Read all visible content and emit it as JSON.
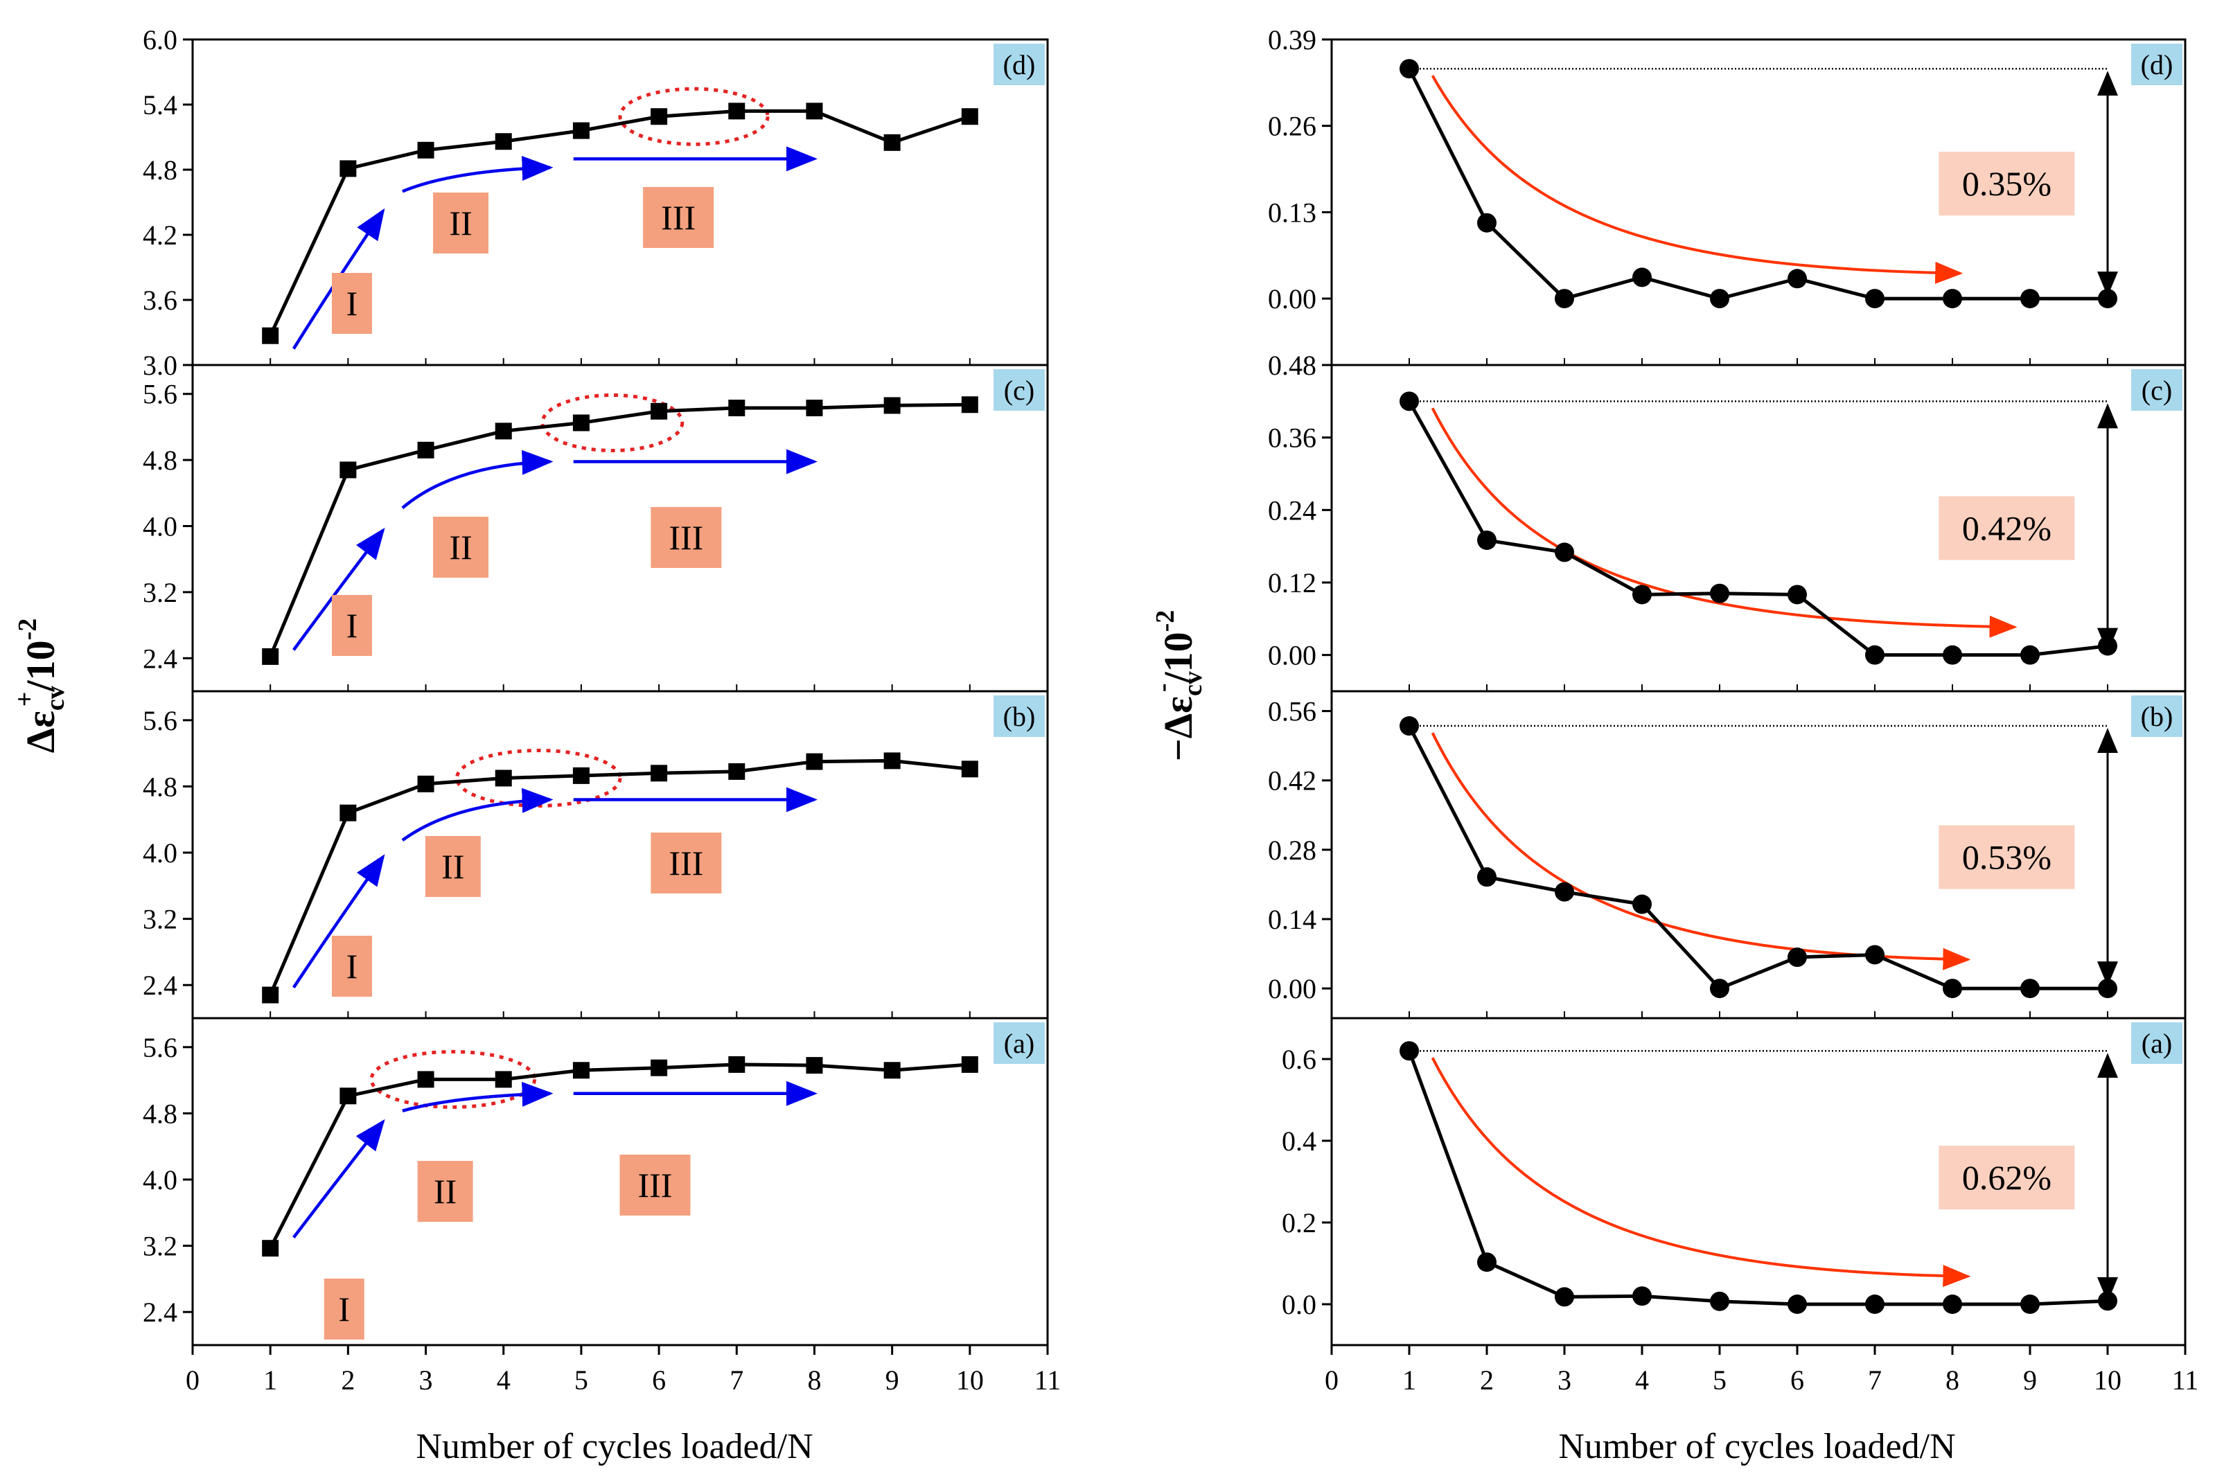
{
  "colors": {
    "line": "#000000",
    "blue_arrow": "#0000ee",
    "red_arrow": "#ff3300",
    "stage_box": "#f4a07e",
    "pct_box": "#fbd0bf",
    "tag_box": "#a8d8ec",
    "ellipse": "#e52222"
  },
  "chart_data": [
    {
      "side": "left",
      "panel": "d",
      "type": "line",
      "marker": "square",
      "x": [
        1,
        2,
        3,
        4,
        5,
        6,
        7,
        8,
        9,
        10
      ],
      "y": [
        3.27,
        4.81,
        4.98,
        5.06,
        5.16,
        5.29,
        5.34,
        5.34,
        5.05,
        5.29
      ],
      "xlim": [
        0,
        11
      ],
      "ylim": [
        3.0,
        6.0
      ],
      "yticks": [
        "3.0",
        "3.6",
        "4.2",
        "4.8",
        "5.4",
        "6.0"
      ],
      "label": "(d)",
      "stages": [
        "I",
        "II",
        "III"
      ],
      "highlight_x": [
        5.5,
        7.4
      ]
    },
    {
      "side": "left",
      "panel": "c",
      "type": "line",
      "marker": "square",
      "x": [
        1,
        2,
        3,
        4,
        5,
        6,
        7,
        8,
        9,
        10
      ],
      "y": [
        2.42,
        4.68,
        4.92,
        5.15,
        5.25,
        5.39,
        5.43,
        5.43,
        5.46,
        5.47
      ],
      "xlim": [
        0,
        11
      ],
      "ylim": [
        2.0,
        5.95
      ],
      "yticks": [
        "2.4",
        "3.2",
        "4.0",
        "4.8",
        "5.6"
      ],
      "label": "(c)",
      "stages": [
        "I",
        "II",
        "III"
      ],
      "highlight_x": [
        4.5,
        6.3
      ]
    },
    {
      "side": "left",
      "panel": "b",
      "type": "line",
      "marker": "square",
      "x": [
        1,
        2,
        3,
        4,
        5,
        6,
        7,
        8,
        9,
        10
      ],
      "y": [
        2.28,
        4.48,
        4.83,
        4.9,
        4.93,
        4.96,
        4.98,
        5.1,
        5.11,
        5.01
      ],
      "xlim": [
        0,
        11
      ],
      "ylim": [
        2.0,
        5.95
      ],
      "yticks": [
        "2.4",
        "3.2",
        "4.0",
        "4.8",
        "5.6"
      ],
      "label": "(b)",
      "stages": [
        "I",
        "II",
        "III"
      ],
      "highlight_x": [
        3.4,
        5.5
      ]
    },
    {
      "side": "left",
      "panel": "a",
      "type": "line",
      "marker": "square",
      "x": [
        1,
        2,
        3,
        4,
        5,
        6,
        7,
        8,
        9,
        10
      ],
      "y": [
        3.17,
        5.01,
        5.21,
        5.21,
        5.32,
        5.35,
        5.39,
        5.38,
        5.32,
        5.39
      ],
      "xlim": [
        0,
        11
      ],
      "ylim": [
        2.0,
        5.95
      ],
      "yticks": [
        "2.4",
        "3.2",
        "4.0",
        "4.8",
        "5.6"
      ],
      "label": "(a)",
      "stages": [
        "I",
        "II",
        "III"
      ],
      "highlight_x": [
        2.3,
        4.4
      ]
    },
    {
      "side": "right",
      "panel": "d",
      "type": "line",
      "marker": "circle",
      "x": [
        1,
        2,
        3,
        4,
        5,
        6,
        7,
        8,
        9,
        10
      ],
      "y": [
        0.346,
        0.114,
        0.0,
        0.032,
        0.0,
        0.03,
        0.0,
        0.0,
        0.0,
        0.0
      ],
      "xlim": [
        0,
        11
      ],
      "ylim": [
        -0.1,
        0.39
      ],
      "yticks": [
        "0.00",
        "0.13",
        "0.26",
        "0.39"
      ],
      "label": "(d)",
      "annotation": "0.35%",
      "trend_end_x": 8.1
    },
    {
      "side": "right",
      "panel": "c",
      "type": "line",
      "marker": "circle",
      "x": [
        1,
        2,
        3,
        4,
        5,
        6,
        7,
        8,
        9,
        10
      ],
      "y": [
        0.42,
        0.19,
        0.17,
        0.1,
        0.102,
        0.1,
        0.0,
        0.0,
        0.0,
        0.015
      ],
      "xlim": [
        0,
        11
      ],
      "ylim": [
        -0.06,
        0.48
      ],
      "yticks": [
        "0.00",
        "0.12",
        "0.24",
        "0.36",
        "0.48"
      ],
      "label": "(c)",
      "annotation": "0.42%",
      "trend_end_x": 8.8
    },
    {
      "side": "right",
      "panel": "b",
      "type": "line",
      "marker": "circle",
      "x": [
        1,
        2,
        3,
        4,
        5,
        6,
        7,
        8,
        9,
        10
      ],
      "y": [
        0.53,
        0.225,
        0.195,
        0.17,
        0.0,
        0.063,
        0.068,
        0.0,
        0.0,
        0.0
      ],
      "xlim": [
        0,
        11
      ],
      "ylim": [
        -0.06,
        0.6
      ],
      "yticks": [
        "0.00",
        "0.14",
        "0.28",
        "0.42",
        "0.56"
      ],
      "label": "(b)",
      "annotation": "0.53%",
      "trend_end_x": 8.2
    },
    {
      "side": "right",
      "panel": "a",
      "type": "line",
      "marker": "circle",
      "x": [
        1,
        2,
        3,
        4,
        5,
        6,
        7,
        8,
        9,
        10
      ],
      "y": [
        0.62,
        0.103,
        0.018,
        0.02,
        0.007,
        0.0,
        0.0,
        0.0,
        0.0,
        0.008
      ],
      "xlim": [
        0,
        11
      ],
      "ylim": [
        -0.1,
        0.7
      ],
      "yticks": [
        "0.0",
        "0.2",
        "0.4",
        "0.6"
      ],
      "label": "(a)",
      "annotation": "0.62%",
      "trend_end_x": 8.2
    }
  ],
  "axes": {
    "xticks": [
      "0",
      "1",
      "2",
      "3",
      "4",
      "5",
      "6",
      "7",
      "8",
      "9",
      "10",
      "11"
    ],
    "xlabel": "Number of cycles loaded/N",
    "left_ylabel": {
      "base": "Δε",
      "sub": "cv",
      "sup": "+",
      "suffix": "/10",
      "exp": "-2"
    },
    "right_ylabel": {
      "base": "−Δε",
      "sub": "cv",
      "sup": "-",
      "suffix": "/10",
      "exp": "-2"
    }
  }
}
